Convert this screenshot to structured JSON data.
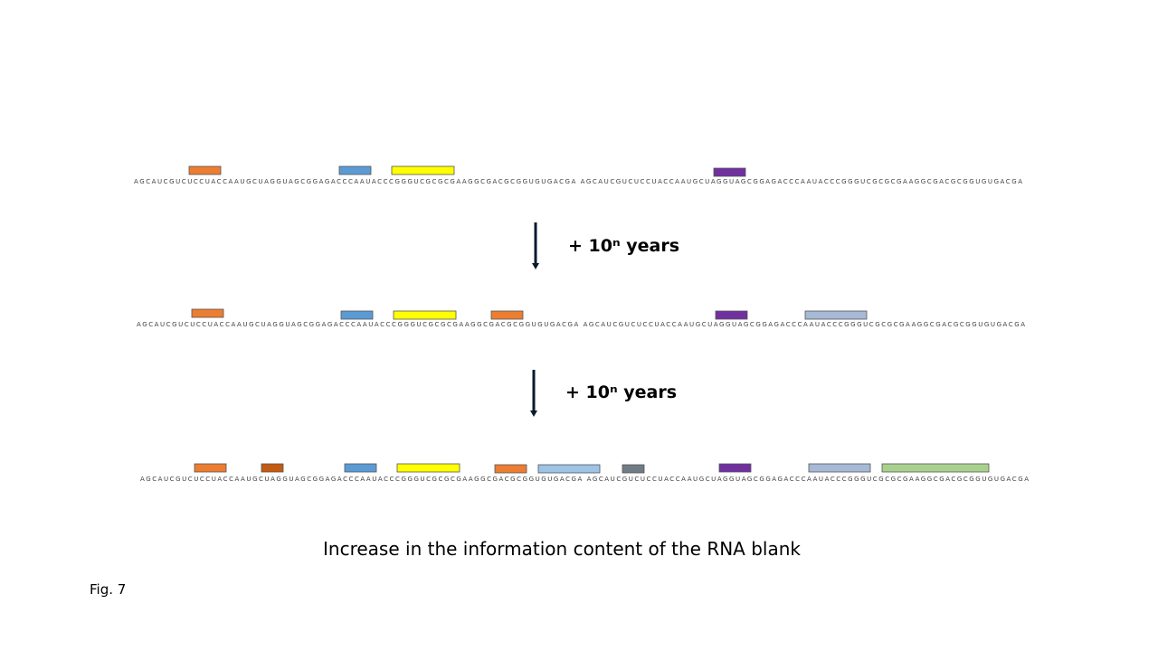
{
  "rows": [
    {
      "sequence": "AGCAUCGUCUCCUACCAAUGCUAGGUAGCGGAGACCCAAUACCCGGGUCGCGCGAAGGCGACGCGGUGUGACGA AGCAUCGUCUCCUACCAAUGCUAGGUAGCGGAGACCCAAUACCCGGGUCGCGCGAAGGCGACGCGGUGUGACGA"
    },
    {
      "sequence": "AGCAUCGUCUCCUACCAAUGCUAGGUAGCGGAGACCCAAUACCCGGGUCGCGCGAAGGCGACGCGGUGUGACGA AGCAUCGUCUCCUACCAAUGCUAGGUAGCGGAGACCCAAUACCCGGGUCGCGCGAAGGCGACGCGGUGUGACGA"
    },
    {
      "sequence": "AGCAUCGUCUCCUACCAAUGCUAGGUAGCGGAGACCCAAUACCCGGGUCGCGCGAAGGCGACGCGGUGUGACGA AGCAUCGUCUCCUACCAAUGCUAGGUAGCGGAGACCCAAUACCCGGGUCGCGCGAAGGCGACGCGGUGUGACGA"
    }
  ],
  "arrows": [
    {
      "label": "+ 10ⁿ years"
    },
    {
      "label": "+ 10ⁿ years"
    }
  ],
  "caption": "Increase in the information content of the RNA blank",
  "figure_label": "Fig. 7"
}
